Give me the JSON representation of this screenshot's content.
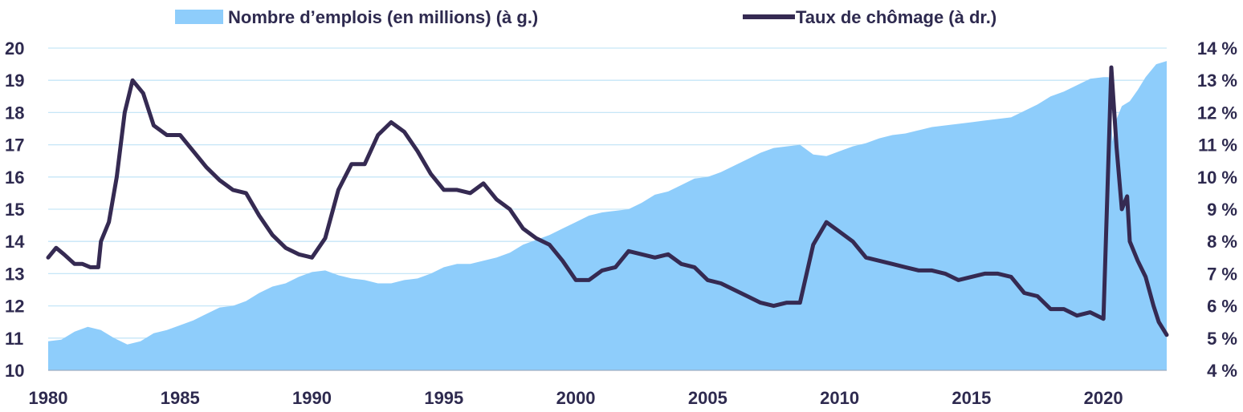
{
  "colors": {
    "employment_fill": "#8ecdfb",
    "unemployment_line": "#352a52",
    "text": "#2e2a4f",
    "grid": "#c6e6f7"
  },
  "chart_data": {
    "type": "area",
    "title": "",
    "xlabel": "",
    "ylabel": "",
    "grid": true,
    "legend_position": "top",
    "x_ticks": [
      "1980",
      "1985",
      "1990",
      "1995",
      "2000",
      "2005",
      "2010",
      "2015",
      "2020"
    ],
    "xlim": [
      1980,
      2022.4
    ],
    "y_left": {
      "ticks": [
        "10",
        "11",
        "12",
        "13",
        "14",
        "15",
        "16",
        "17",
        "18",
        "19",
        "20"
      ],
      "ylim": [
        10,
        20
      ]
    },
    "y_right": {
      "ticks": [
        "4 %",
        "5 %",
        "6 %",
        "7 %",
        "8 %",
        "9 %",
        "10 %",
        "11 %",
        "12 %",
        "13 %",
        "14 %"
      ],
      "ylim": [
        4,
        14
      ]
    },
    "series": [
      {
        "name": "Nombre d’emplois (en millions) (à g.)",
        "type": "area",
        "axis": "left",
        "points": [
          [
            1980.0,
            10.9
          ],
          [
            1980.5,
            10.95
          ],
          [
            1981.0,
            11.2
          ],
          [
            1981.5,
            11.35
          ],
          [
            1982.0,
            11.25
          ],
          [
            1982.5,
            11.0
          ],
          [
            1983.0,
            10.8
          ],
          [
            1983.5,
            10.9
          ],
          [
            1984.0,
            11.15
          ],
          [
            1984.5,
            11.25
          ],
          [
            1985.0,
            11.4
          ],
          [
            1985.5,
            11.55
          ],
          [
            1986.0,
            11.75
          ],
          [
            1986.5,
            11.95
          ],
          [
            1987.0,
            12.0
          ],
          [
            1987.5,
            12.15
          ],
          [
            1988.0,
            12.4
          ],
          [
            1988.5,
            12.6
          ],
          [
            1989.0,
            12.7
          ],
          [
            1989.5,
            12.9
          ],
          [
            1990.0,
            13.05
          ],
          [
            1990.5,
            13.1
          ],
          [
            1991.0,
            12.95
          ],
          [
            1991.5,
            12.85
          ],
          [
            1992.0,
            12.8
          ],
          [
            1992.5,
            12.7
          ],
          [
            1993.0,
            12.7
          ],
          [
            1993.5,
            12.8
          ],
          [
            1994.0,
            12.85
          ],
          [
            1994.5,
            13.0
          ],
          [
            1995.0,
            13.2
          ],
          [
            1995.5,
            13.3
          ],
          [
            1996.0,
            13.3
          ],
          [
            1996.5,
            13.4
          ],
          [
            1997.0,
            13.5
          ],
          [
            1997.5,
            13.65
          ],
          [
            1998.0,
            13.9
          ],
          [
            1998.5,
            14.05
          ],
          [
            1999.0,
            14.2
          ],
          [
            1999.5,
            14.4
          ],
          [
            2000.0,
            14.6
          ],
          [
            2000.5,
            14.8
          ],
          [
            2001.0,
            14.9
          ],
          [
            2001.5,
            14.95
          ],
          [
            2002.0,
            15.0
          ],
          [
            2002.5,
            15.2
          ],
          [
            2003.0,
            15.45
          ],
          [
            2003.5,
            15.55
          ],
          [
            2004.0,
            15.75
          ],
          [
            2004.5,
            15.95
          ],
          [
            2005.0,
            16.0
          ],
          [
            2005.5,
            16.15
          ],
          [
            2006.0,
            16.35
          ],
          [
            2006.5,
            16.55
          ],
          [
            2007.0,
            16.75
          ],
          [
            2007.5,
            16.9
          ],
          [
            2008.0,
            16.95
          ],
          [
            2008.5,
            17.0
          ],
          [
            2009.0,
            16.7
          ],
          [
            2009.5,
            16.65
          ],
          [
            2010.0,
            16.8
          ],
          [
            2010.5,
            16.95
          ],
          [
            2011.0,
            17.05
          ],
          [
            2011.5,
            17.2
          ],
          [
            2012.0,
            17.3
          ],
          [
            2012.5,
            17.35
          ],
          [
            2013.0,
            17.45
          ],
          [
            2013.5,
            17.55
          ],
          [
            2014.0,
            17.6
          ],
          [
            2014.5,
            17.65
          ],
          [
            2015.0,
            17.7
          ],
          [
            2015.5,
            17.75
          ],
          [
            2016.0,
            17.8
          ],
          [
            2016.5,
            17.85
          ],
          [
            2017.0,
            18.05
          ],
          [
            2017.5,
            18.25
          ],
          [
            2018.0,
            18.5
          ],
          [
            2018.5,
            18.65
          ],
          [
            2019.0,
            18.85
          ],
          [
            2019.5,
            19.05
          ],
          [
            2020.0,
            19.1
          ],
          [
            2020.2,
            19.1
          ],
          [
            2020.35,
            17.1
          ],
          [
            2020.5,
            17.8
          ],
          [
            2020.7,
            18.2
          ],
          [
            2021.0,
            18.35
          ],
          [
            2021.3,
            18.7
          ],
          [
            2021.6,
            19.1
          ],
          [
            2022.0,
            19.5
          ],
          [
            2022.4,
            19.6
          ]
        ]
      },
      {
        "name": "Taux de chômage (à dr.)",
        "type": "line",
        "axis": "right",
        "points": [
          [
            1980.0,
            7.5
          ],
          [
            1980.3,
            7.8
          ],
          [
            1980.6,
            7.6
          ],
          [
            1981.0,
            7.3
          ],
          [
            1981.3,
            7.3
          ],
          [
            1981.6,
            7.2
          ],
          [
            1981.9,
            7.2
          ],
          [
            1982.0,
            8.0
          ],
          [
            1982.3,
            8.6
          ],
          [
            1982.6,
            10.0
          ],
          [
            1982.9,
            12.0
          ],
          [
            1983.2,
            13.0
          ],
          [
            1983.6,
            12.6
          ],
          [
            1984.0,
            11.6
          ],
          [
            1984.5,
            11.3
          ],
          [
            1985.0,
            11.3
          ],
          [
            1985.5,
            10.8
          ],
          [
            1986.0,
            10.3
          ],
          [
            1986.5,
            9.9
          ],
          [
            1987.0,
            9.6
          ],
          [
            1987.5,
            9.5
          ],
          [
            1988.0,
            8.8
          ],
          [
            1988.5,
            8.2
          ],
          [
            1989.0,
            7.8
          ],
          [
            1989.5,
            7.6
          ],
          [
            1990.0,
            7.5
          ],
          [
            1990.5,
            8.1
          ],
          [
            1991.0,
            9.6
          ],
          [
            1991.5,
            10.4
          ],
          [
            1992.0,
            10.4
          ],
          [
            1992.5,
            11.3
          ],
          [
            1993.0,
            11.7
          ],
          [
            1993.5,
            11.4
          ],
          [
            1994.0,
            10.8
          ],
          [
            1994.5,
            10.1
          ],
          [
            1995.0,
            9.6
          ],
          [
            1995.5,
            9.6
          ],
          [
            1996.0,
            9.5
          ],
          [
            1996.5,
            9.8
          ],
          [
            1997.0,
            9.3
          ],
          [
            1997.5,
            9.0
          ],
          [
            1998.0,
            8.4
          ],
          [
            1998.5,
            8.1
          ],
          [
            1999.0,
            7.9
          ],
          [
            1999.5,
            7.4
          ],
          [
            2000.0,
            6.8
          ],
          [
            2000.5,
            6.8
          ],
          [
            2001.0,
            7.1
          ],
          [
            2001.5,
            7.2
          ],
          [
            2002.0,
            7.7
          ],
          [
            2002.5,
            7.6
          ],
          [
            2003.0,
            7.5
          ],
          [
            2003.5,
            7.6
          ],
          [
            2004.0,
            7.3
          ],
          [
            2004.5,
            7.2
          ],
          [
            2005.0,
            6.8
          ],
          [
            2005.5,
            6.7
          ],
          [
            2006.0,
            6.5
          ],
          [
            2006.5,
            6.3
          ],
          [
            2007.0,
            6.1
          ],
          [
            2007.5,
            6.0
          ],
          [
            2008.0,
            6.1
          ],
          [
            2008.5,
            6.1
          ],
          [
            2009.0,
            7.9
          ],
          [
            2009.5,
            8.6
          ],
          [
            2010.0,
            8.3
          ],
          [
            2010.5,
            8.0
          ],
          [
            2011.0,
            7.5
          ],
          [
            2011.5,
            7.4
          ],
          [
            2012.0,
            7.3
          ],
          [
            2012.5,
            7.2
          ],
          [
            2013.0,
            7.1
          ],
          [
            2013.5,
            7.1
          ],
          [
            2014.0,
            7.0
          ],
          [
            2014.5,
            6.8
          ],
          [
            2015.0,
            6.9
          ],
          [
            2015.5,
            7.0
          ],
          [
            2016.0,
            7.0
          ],
          [
            2016.5,
            6.9
          ],
          [
            2017.0,
            6.4
          ],
          [
            2017.5,
            6.3
          ],
          [
            2018.0,
            5.9
          ],
          [
            2018.5,
            5.9
          ],
          [
            2019.0,
            5.7
          ],
          [
            2019.5,
            5.8
          ],
          [
            2020.0,
            5.6
          ],
          [
            2020.3,
            13.4
          ],
          [
            2020.5,
            10.9
          ],
          [
            2020.7,
            9.0
          ],
          [
            2020.9,
            9.4
          ],
          [
            2021.0,
            8.0
          ],
          [
            2021.3,
            7.4
          ],
          [
            2021.6,
            6.9
          ],
          [
            2021.9,
            6.0
          ],
          [
            2022.1,
            5.5
          ],
          [
            2022.4,
            5.1
          ]
        ]
      }
    ]
  }
}
